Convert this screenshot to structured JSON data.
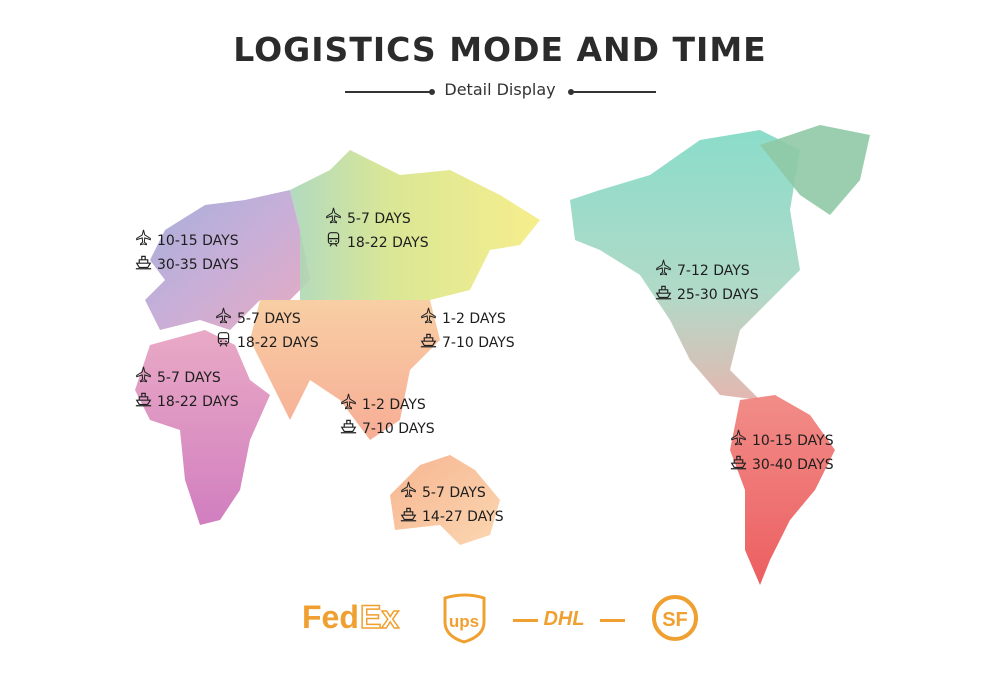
{
  "header": {
    "title": "LOGISTICS MODE AND TIME",
    "subtitle": "Detail Display"
  },
  "colors": {
    "text": "#222222",
    "logo_orange": "#f0a030"
  },
  "regions": [
    {
      "id": "western-europe",
      "rows": [
        {
          "mode": "air",
          "icon": "airplane-icon",
          "time": "10-15 DAYS"
        },
        {
          "mode": "sea",
          "icon": "ship-icon",
          "time": "30-35 DAYS"
        }
      ]
    },
    {
      "id": "russia",
      "rows": [
        {
          "mode": "air",
          "icon": "airplane-icon",
          "time": "5-7 DAYS"
        },
        {
          "mode": "rail",
          "icon": "train-icon",
          "time": "18-22 DAYS"
        }
      ]
    },
    {
      "id": "central-europe",
      "rows": [
        {
          "mode": "air",
          "icon": "airplane-icon",
          "time": "5-7 DAYS"
        },
        {
          "mode": "rail",
          "icon": "train-icon",
          "time": "18-22 DAYS"
        }
      ]
    },
    {
      "id": "africa",
      "rows": [
        {
          "mode": "air",
          "icon": "airplane-icon",
          "time": "5-7 DAYS"
        },
        {
          "mode": "sea",
          "icon": "ship-icon",
          "time": "18-22 DAYS"
        }
      ]
    },
    {
      "id": "east-asia",
      "rows": [
        {
          "mode": "air",
          "icon": "airplane-icon",
          "time": "1-2 DAYS"
        },
        {
          "mode": "sea",
          "icon": "ship-icon",
          "time": "7-10 DAYS"
        }
      ]
    },
    {
      "id": "southeast-asia",
      "rows": [
        {
          "mode": "air",
          "icon": "airplane-icon",
          "time": "1-2 DAYS"
        },
        {
          "mode": "sea",
          "icon": "ship-icon",
          "time": "7-10 DAYS"
        }
      ]
    },
    {
      "id": "australia",
      "rows": [
        {
          "mode": "air",
          "icon": "airplane-icon",
          "time": "5-7 DAYS"
        },
        {
          "mode": "sea",
          "icon": "ship-icon",
          "time": "14-27 DAYS"
        }
      ]
    },
    {
      "id": "north-america",
      "rows": [
        {
          "mode": "air",
          "icon": "airplane-icon",
          "time": "7-12 DAYS"
        },
        {
          "mode": "sea",
          "icon": "ship-icon",
          "time": "25-30 DAYS"
        }
      ]
    },
    {
      "id": "south-america",
      "rows": [
        {
          "mode": "air",
          "icon": "airplane-icon",
          "time": "10-15 DAYS"
        },
        {
          "mode": "sea",
          "icon": "ship-icon",
          "time": "30-40 DAYS"
        }
      ]
    }
  ],
  "carriers": [
    "FedEx",
    "UPS",
    "DHL",
    "SF"
  ]
}
